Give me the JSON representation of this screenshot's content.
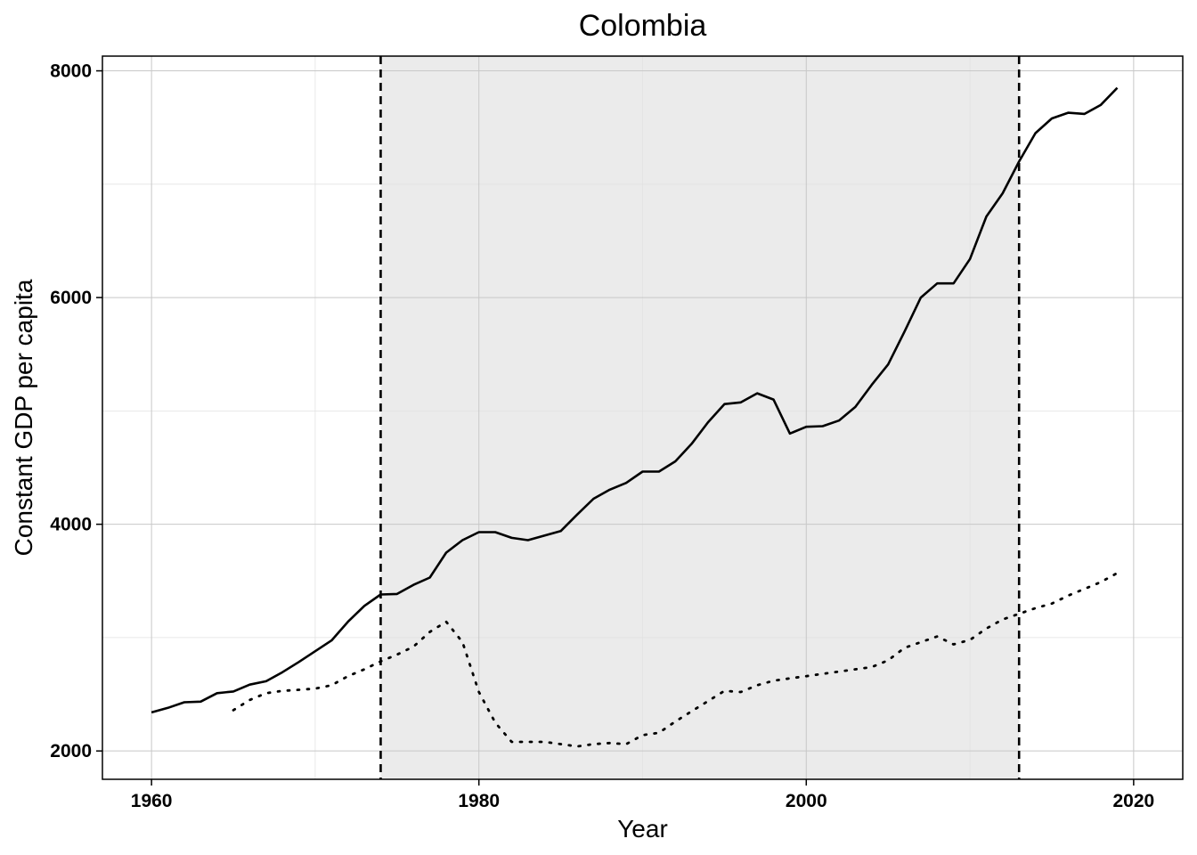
{
  "chart_data": {
    "type": "line",
    "title": "Colombia",
    "xlabel": "Year",
    "ylabel": "Constant GDP per capita",
    "xlim": [
      1957,
      2023
    ],
    "ylim": [
      1750,
      8130
    ],
    "xticks": [
      1960,
      1980,
      2000,
      2020
    ],
    "yticks": [
      2000,
      4000,
      6000,
      8000
    ],
    "grid": true,
    "legend": "none",
    "shaded_period": [
      1974,
      2013
    ],
    "colors": {
      "line": "#000000",
      "shade": "#ebebeb",
      "grid": "#c8c8c8",
      "minor_grid": "#e2e2e2"
    },
    "series": [
      {
        "style": "solid",
        "x": [
          1960,
          1961,
          1962,
          1963,
          1964,
          1965,
          1966,
          1967,
          1968,
          1969,
          1970,
          1971,
          1972,
          1973,
          1974,
          1975,
          1976,
          1977,
          1978,
          1979,
          1980,
          1981,
          1982,
          1983,
          1984,
          1985,
          1986,
          1987,
          1988,
          1989,
          1990,
          1991,
          1992,
          1993,
          1994,
          1995,
          1996,
          1997,
          1998,
          1999,
          2000,
          2001,
          2002,
          2003,
          2004,
          2005,
          2006,
          2007,
          2008,
          2009,
          2010,
          2011,
          2012,
          2013,
          2014,
          2015,
          2016,
          2017,
          2018,
          2019
        ],
        "values": [
          2340,
          2380,
          2430,
          2435,
          2510,
          2525,
          2585,
          2615,
          2695,
          2785,
          2880,
          2975,
          3140,
          3280,
          3380,
          3385,
          3465,
          3530,
          3750,
          3860,
          3930,
          3930,
          3880,
          3860,
          3900,
          3940,
          4085,
          4225,
          4305,
          4365,
          4465,
          4465,
          4555,
          4710,
          4900,
          5060,
          5075,
          5155,
          5100,
          4800,
          4860,
          4865,
          4915,
          5035,
          5230,
          5410,
          5700,
          6000,
          6125,
          6125,
          6340,
          6715,
          6920,
          7200,
          7450,
          7580,
          7630,
          7620,
          7700,
          7850
        ]
      },
      {
        "style": "dotted",
        "x": [
          1965,
          1966,
          1967,
          1968,
          1969,
          1970,
          1971,
          1972,
          1973,
          1974,
          1975,
          1976,
          1977,
          1978,
          1979,
          1980,
          1981,
          1982,
          1983,
          1984,
          1985,
          1986,
          1987,
          1988,
          1989,
          1990,
          1991,
          1992,
          1993,
          1994,
          1995,
          1996,
          1997,
          1998,
          1999,
          2000,
          2001,
          2002,
          2003,
          2004,
          2005,
          2006,
          2007,
          2008,
          2009,
          2010,
          2011,
          2012,
          2013,
          2014,
          2015,
          2016,
          2017,
          2018,
          2019
        ],
        "values": [
          2360,
          2450,
          2510,
          2530,
          2540,
          2550,
          2580,
          2660,
          2720,
          2790,
          2850,
          2920,
          3050,
          3140,
          2960,
          2520,
          2250,
          2080,
          2080,
          2080,
          2060,
          2040,
          2060,
          2070,
          2060,
          2140,
          2160,
          2260,
          2350,
          2440,
          2530,
          2520,
          2580,
          2620,
          2640,
          2660,
          2680,
          2700,
          2720,
          2740,
          2800,
          2910,
          2960,
          3010,
          2940,
          2980,
          3080,
          3160,
          3210,
          3260,
          3300,
          3370,
          3430,
          3490,
          3570
        ]
      }
    ]
  }
}
